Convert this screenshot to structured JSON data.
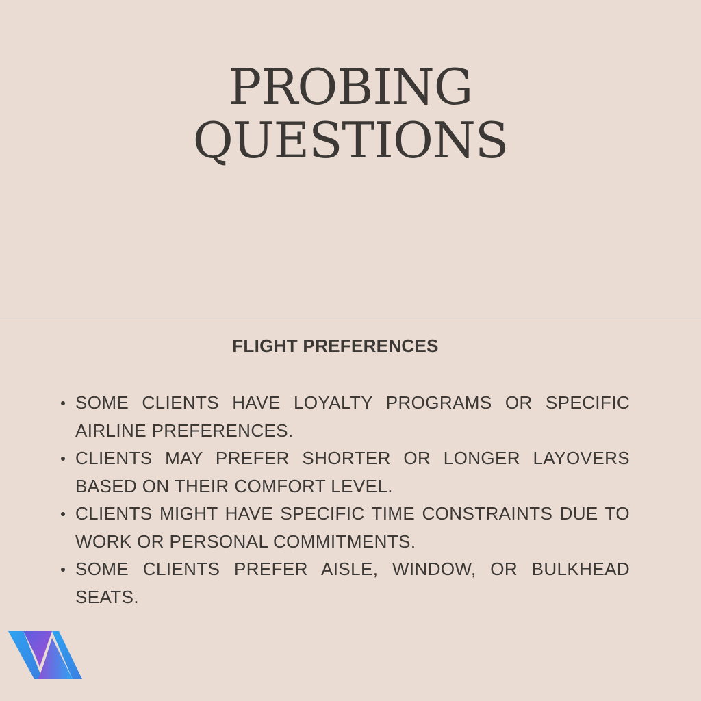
{
  "title": {
    "line1": "PROBING",
    "line2": "QUESTIONS"
  },
  "section": {
    "heading": "FLIGHT PREFERENCES"
  },
  "bullets": [
    " SOME CLIENTS HAVE LOYALTY PROGRAMS OR SPECIFIC AIRLINE PREFERENCES.",
    "CLIENTS MAY PREFER SHORTER OR LONGER LAYOVERS BASED ON THEIR COMFORT LEVEL.",
    "CLIENTS MIGHT HAVE SPECIFIC TIME CONSTRAINTS DUE TO WORK OR PERSONAL COMMITMENTS.",
    "SOME CLIENTS PREFER AISLE, WINDOW, OR BULKHEAD SEATS."
  ],
  "colors": {
    "background": "#eadcd3",
    "text": "#3b3835",
    "divider": "#6f6a65",
    "logo_blue": "#2ea3f2",
    "logo_purple": "#8a52d6"
  },
  "logo": {
    "icon": "va-logo-icon"
  }
}
